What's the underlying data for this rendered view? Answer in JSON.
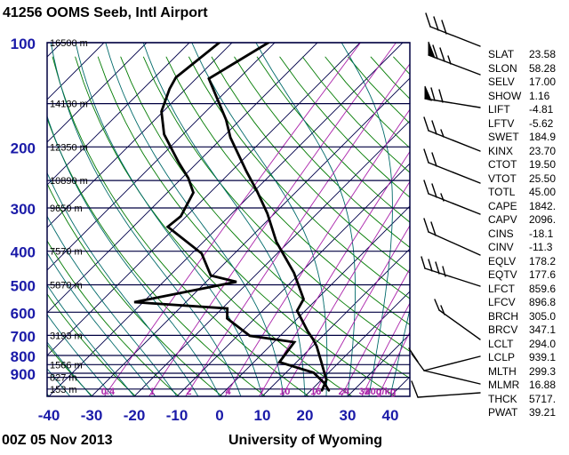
{
  "title": "41256 OOMS Seeb, Intl Airport",
  "footer": {
    "datetime": "00Z 05 Nov 2013",
    "source": "University of Wyoming"
  },
  "stats": [
    {
      "label": "SLAT",
      "value": "23.58"
    },
    {
      "label": "SLON",
      "value": "58.28"
    },
    {
      "label": "SELV",
      "value": "17.00"
    },
    {
      "label": "SHOW",
      "value": "1.16"
    },
    {
      "label": "LIFT",
      "value": "-4.81"
    },
    {
      "label": "LFTV",
      "value": "-5.62"
    },
    {
      "label": "SWET",
      "value": "184.9"
    },
    {
      "label": "KINX",
      "value": "23.70"
    },
    {
      "label": "CTOT",
      "value": "19.50"
    },
    {
      "label": "VTOT",
      "value": "25.50"
    },
    {
      "label": "TOTL",
      "value": "45.00"
    },
    {
      "label": "CAPE",
      "value": "1842."
    },
    {
      "label": "CAPV",
      "value": "2096."
    },
    {
      "label": "CINS",
      "value": "-18.1"
    },
    {
      "label": "CINV",
      "value": "-11.3"
    },
    {
      "label": "EQLV",
      "value": "178.2"
    },
    {
      "label": "EQTV",
      "value": "177.6"
    },
    {
      "label": "LFCT",
      "value": "859.6"
    },
    {
      "label": "LFCV",
      "value": "896.8"
    },
    {
      "label": "BRCH",
      "value": "305.0"
    },
    {
      "label": "BRCV",
      "value": "347.1"
    },
    {
      "label": "LCLT",
      "value": "294.0"
    },
    {
      "label": "LCLP",
      "value": "939.1"
    },
    {
      "label": "MLTH",
      "value": "299.3"
    },
    {
      "label": "MLMR",
      "value": "16.88"
    },
    {
      "label": "THCK",
      "value": "5717."
    },
    {
      "label": "PWAT",
      "value": "39.21"
    }
  ],
  "chart_data": {
    "type": "skewt-log-p",
    "pressure_axis": {
      "unit": "hPa",
      "range": [
        100,
        1050
      ],
      "labeled_levels": [
        100,
        200,
        300,
        400,
        500,
        600,
        700,
        800,
        900
      ],
      "isobar_levels": [
        100,
        150,
        200,
        250,
        300,
        400,
        500,
        600,
        700,
        800,
        850,
        900,
        925,
        1000
      ]
    },
    "temp_axis": {
      "unit": "C",
      "labels": [
        -40,
        -30,
        -20,
        -10,
        0,
        10,
        20,
        30,
        40
      ],
      "skew_deg": 45
    },
    "altitude_labels": [
      {
        "p": 100,
        "text": "16500 m"
      },
      {
        "p": 150,
        "text": "14130 m"
      },
      {
        "p": 200,
        "text": "12350 m"
      },
      {
        "p": 250,
        "text": "10890 m"
      },
      {
        "p": 300,
        "text": "9650 m"
      },
      {
        "p": 400,
        "text": "7570 m"
      },
      {
        "p": 500,
        "text": "5870 m"
      },
      {
        "p": 700,
        "text": "3193 m"
      },
      {
        "p": 850,
        "text": "1566 m"
      },
      {
        "p": 925,
        "text": "827 m"
      },
      {
        "p": 1000,
        "text": "153 m"
      }
    ],
    "mixing_ratio_lines": {
      "values": [
        0.4,
        1,
        2,
        4,
        7,
        10,
        16,
        24,
        32,
        40
      ],
      "unit": "g/kg"
    },
    "dry_adiabats": {
      "theta_start": 230,
      "theta_end": 450,
      "step": 10
    },
    "moist_adiabats": {
      "t0_start": -60,
      "t0_end": 45,
      "step": 5
    },
    "isotherms": {
      "start": -120,
      "end": 40,
      "step": 10
    },
    "temperature_profile": [
      [
        100,
        -71.5
      ],
      [
        127,
        -77.0
      ],
      [
        167,
        -63.3
      ],
      [
        188,
        -58.1
      ],
      [
        235,
        -46.5
      ],
      [
        268,
        -39.4
      ],
      [
        311,
        -31.7
      ],
      [
        376,
        -22.9
      ],
      [
        462,
        -11.5
      ],
      [
        550,
        -3.1
      ],
      [
        594,
        -1.9
      ],
      [
        681,
        5.4
      ],
      [
        718,
        8.5
      ],
      [
        752,
        11.0
      ],
      [
        832,
        15.6
      ],
      [
        887,
        18.5
      ],
      [
        941,
        21.2
      ],
      [
        1009,
        22.6
      ]
    ],
    "dewpoint_profile": [
      [
        100,
        -83.0
      ],
      [
        126,
        -85.0
      ],
      [
        136,
        -83.8
      ],
      [
        158,
        -80.4
      ],
      [
        184,
        -74.4
      ],
      [
        221,
        -64.6
      ],
      [
        246,
        -58.5
      ],
      [
        271,
        -53.9
      ],
      [
        317,
        -51.3
      ],
      [
        340,
        -51.9
      ],
      [
        406,
        -37.7
      ],
      [
        470,
        -30.4
      ],
      [
        490,
        -22.9
      ],
      [
        561,
        -42.1
      ],
      [
        585,
        -18.8
      ],
      [
        625,
        -16.5
      ],
      [
        702,
        -7.1
      ],
      [
        732,
        4.8
      ],
      [
        836,
        6.0
      ],
      [
        897,
        16.5
      ],
      [
        962,
        21.5
      ],
      [
        1009,
        24.2
      ]
    ],
    "wind_barbs": [
      {
        "segments": [
          [
            484,
            30,
            540,
            52
          ],
          [
            484,
            30,
            479,
            15
          ],
          [
            493,
            34,
            488,
            19
          ],
          [
            502,
            38,
            497,
            23
          ]
        ]
      },
      {
        "segments": [
          [
            482,
            62,
            540,
            84
          ],
          [
            492,
            66,
            487,
            51
          ],
          [
            500,
            69,
            495,
            54
          ],
          [
            507,
            72,
            504,
            63
          ]
        ],
        "pennant": [
          482,
          62,
          489,
          65,
          482,
          47
        ]
      },
      {
        "segments": [
          [
            478,
            111,
            540,
            121
          ],
          [
            489,
            113,
            485,
            99
          ],
          [
            498,
            115,
            494,
            101
          ]
        ],
        "pennant": [
          478,
          111,
          485,
          113,
          478,
          97
        ]
      },
      {
        "segments": [
          [
            482,
            147,
            540,
            170
          ],
          [
            482,
            147,
            477,
            132
          ],
          [
            491,
            151,
            486,
            136
          ],
          [
            499,
            154,
            496,
            146
          ]
        ]
      },
      {
        "segments": [
          [
            482,
            183,
            540,
            206
          ],
          [
            482,
            183,
            477,
            168
          ],
          [
            491,
            187,
            486,
            172
          ]
        ]
      },
      {
        "segments": [
          [
            482,
            218,
            540,
            241
          ],
          [
            482,
            218,
            477,
            203
          ],
          [
            491,
            222,
            486,
            207
          ],
          [
            499,
            226,
            496,
            218
          ]
        ]
      },
      {
        "segments": [
          [
            482,
            261,
            540,
            287
          ],
          [
            482,
            261,
            477,
            246
          ],
          [
            490,
            265,
            485,
            250
          ]
        ]
      },
      {
        "segments": [
          [
            478,
            302,
            540,
            322
          ],
          [
            478,
            302,
            474,
            289
          ],
          [
            486,
            305,
            482,
            292
          ],
          [
            494,
            308,
            490,
            295
          ],
          [
            501,
            311,
            498,
            300
          ]
        ]
      },
      {
        "segments": [
          [
            494,
            349,
            540,
            382
          ],
          [
            494,
            349,
            489,
            337
          ],
          [
            500,
            354,
            496,
            344
          ]
        ]
      },
      {
        "segments": [
          [
            477,
            417,
            540,
            401
          ],
          [
            477,
            417,
            540,
            432
          ],
          [
            477,
            417,
            463,
            398
          ],
          [
            470,
            407,
            460,
            392
          ]
        ]
      },
      {
        "segments": [
          [
            463,
            429,
            470,
            447
          ],
          [
            470,
            447,
            540,
            442
          ]
        ]
      }
    ],
    "colors": {
      "background": "#ffffff",
      "frame": "#000040",
      "isobar": "#000040",
      "isotherm": "#00004a",
      "dry_adiabat": "#007a00",
      "moist_adiabat": "#006a6a",
      "mixing_ratio": "#aa22aa",
      "axis_label": "#1a1aa8",
      "profile": "#000000",
      "altitude_label": "#000000"
    }
  }
}
